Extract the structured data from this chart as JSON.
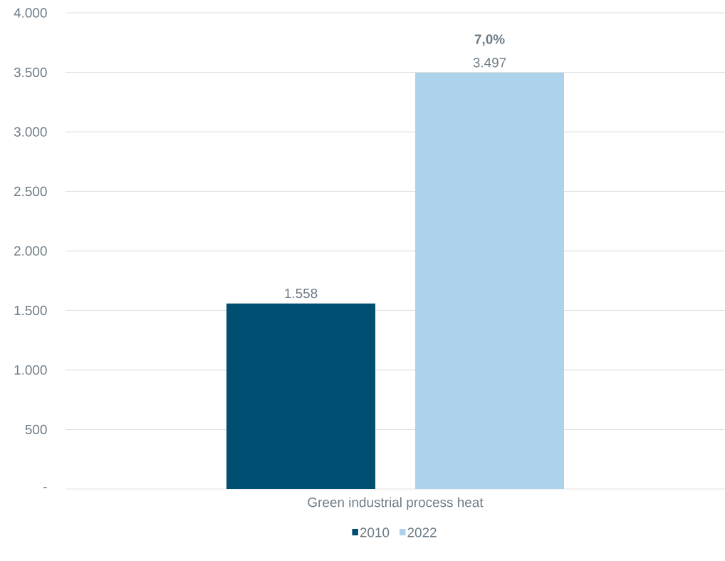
{
  "chart_data": {
    "type": "bar",
    "categories": [
      "Green industrial process heat"
    ],
    "series": [
      {
        "name": "2010",
        "color": "#004e71",
        "values": [
          1558
        ],
        "value_labels": [
          "1.558"
        ]
      },
      {
        "name": "2022",
        "color": "#acd3eb",
        "values": [
          3497
        ],
        "value_labels": [
          "3.497"
        ]
      }
    ],
    "ylim": [
      0,
      4000
    ],
    "yticks": [
      {
        "value": 0,
        "label": "-"
      },
      500,
      {
        "value": 1000,
        "label": "1.000"
      },
      {
        "value": 1500,
        "label": "1.500"
      },
      {
        "value": 2000,
        "label": "2.000"
      },
      {
        "value": 2500,
        "label": "2.500"
      },
      {
        "value": 3000,
        "label": "3.000"
      },
      {
        "value": 3500,
        "label": "3.500"
      },
      {
        "value": 4000,
        "label": "4.000"
      }
    ],
    "annotations": [
      "**7,0%**"
    ],
    "grid": "y",
    "legend": "bottom"
  }
}
